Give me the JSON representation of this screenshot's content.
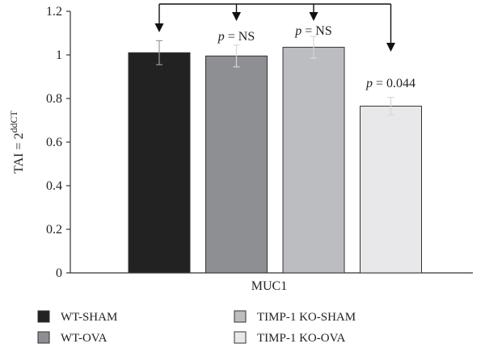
{
  "chart_data": {
    "type": "bar",
    "categories": [
      "MUC1"
    ],
    "series": [
      {
        "name": "WT-SHAM",
        "value": 1.01,
        "error": 0.055,
        "color": "#222222"
      },
      {
        "name": "WT-OVA",
        "value": 0.995,
        "error": 0.05,
        "color": "#8e8f93"
      },
      {
        "name": "TIMP-1 KO-SHAM",
        "value": 1.035,
        "error": 0.05,
        "color": "#bcbdc0"
      },
      {
        "name": "TIMP-1 KO-OVA",
        "value": 0.765,
        "error": 0.04,
        "color": "#e8e8ea"
      }
    ],
    "ylabel": {
      "main": "TAI = 2",
      "sup": "ddCT"
    },
    "xlabel": "MUC1",
    "ylim": [
      0,
      1.2
    ],
    "yticks": [
      "0",
      "0.2",
      "0.4",
      "0.6",
      "0.8",
      "1",
      "1.2"
    ],
    "annotations": [
      {
        "target": "WT-OVA",
        "text_italic": "p",
        "text_rest": " = NS"
      },
      {
        "target": "TIMP-1 KO-SHAM",
        "text_italic": "p",
        "text_rest": " = NS"
      },
      {
        "target": "TIMP-1 KO-OVA",
        "text_italic": "p",
        "text_rest": " = 0.044"
      }
    ],
    "legend_position": "bottom",
    "grid": false
  }
}
